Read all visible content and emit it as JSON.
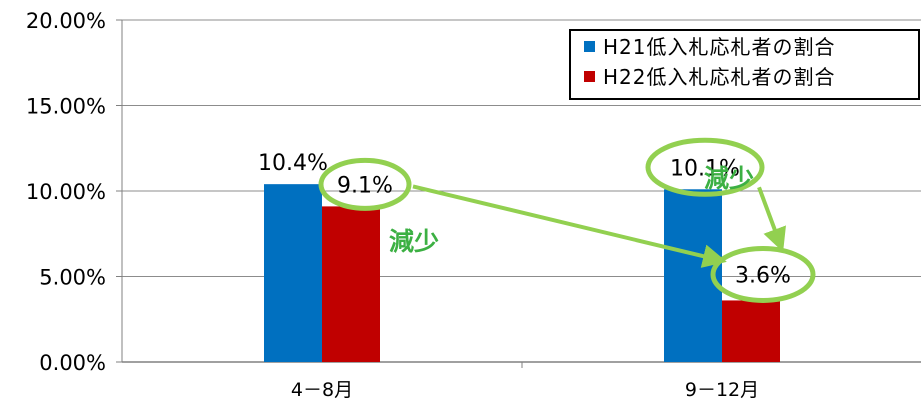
{
  "chart_data": {
    "type": "bar",
    "categories": [
      "4－8月",
      "9－12月"
    ],
    "series": [
      {
        "name": "H21低入札応札者の割合",
        "values": [
          10.4,
          10.1
        ],
        "color": "#0070C0"
      },
      {
        "name": "H22低入札応札者の割合",
        "values": [
          9.1,
          3.6
        ],
        "color": "#C00000"
      }
    ],
    "ylim": [
      0,
      20
    ],
    "yticks": [
      "0.00%",
      "5.00%",
      "10.00%",
      "15.00%",
      "20.00%"
    ],
    "data_labels": [
      [
        "10.4%",
        "10.1%"
      ],
      [
        "9.1%",
        "3.6%"
      ]
    ],
    "grid": true,
    "legend_position": "top-right",
    "annotations": [
      {
        "text": "減少",
        "color": "#3CB043"
      },
      {
        "text": "減少",
        "color": "#3CB043"
      }
    ],
    "highlight_color": "#92D050"
  }
}
